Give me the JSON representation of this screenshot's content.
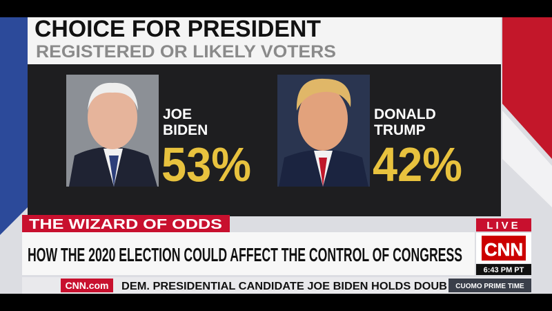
{
  "graphic": {
    "title": "CHOICE FOR PRESIDENT",
    "subtitle": "REGISTERED OR LIKELY VOTERS",
    "candidates": [
      {
        "first": "JOE",
        "last": "BIDEN",
        "share": "53%"
      },
      {
        "first": "DONALD",
        "last": "TRUMP",
        "share": "42%"
      }
    ]
  },
  "lower_third": {
    "tag": "THE WIZARD OF ODDS",
    "headline": "HOW THE 2020 ELECTION COULD AFFECT THE CONTROL OF CONGRESS",
    "live": "LIVE",
    "network": "CNN",
    "time": "6:43 PM PT"
  },
  "ticker": {
    "site": "CNN.com",
    "text": "DEM. PRESIDENTIAL CANDIDATE JOE BIDEN HOLDS DOUB",
    "show": "CUOMO PRIME TIME"
  }
}
